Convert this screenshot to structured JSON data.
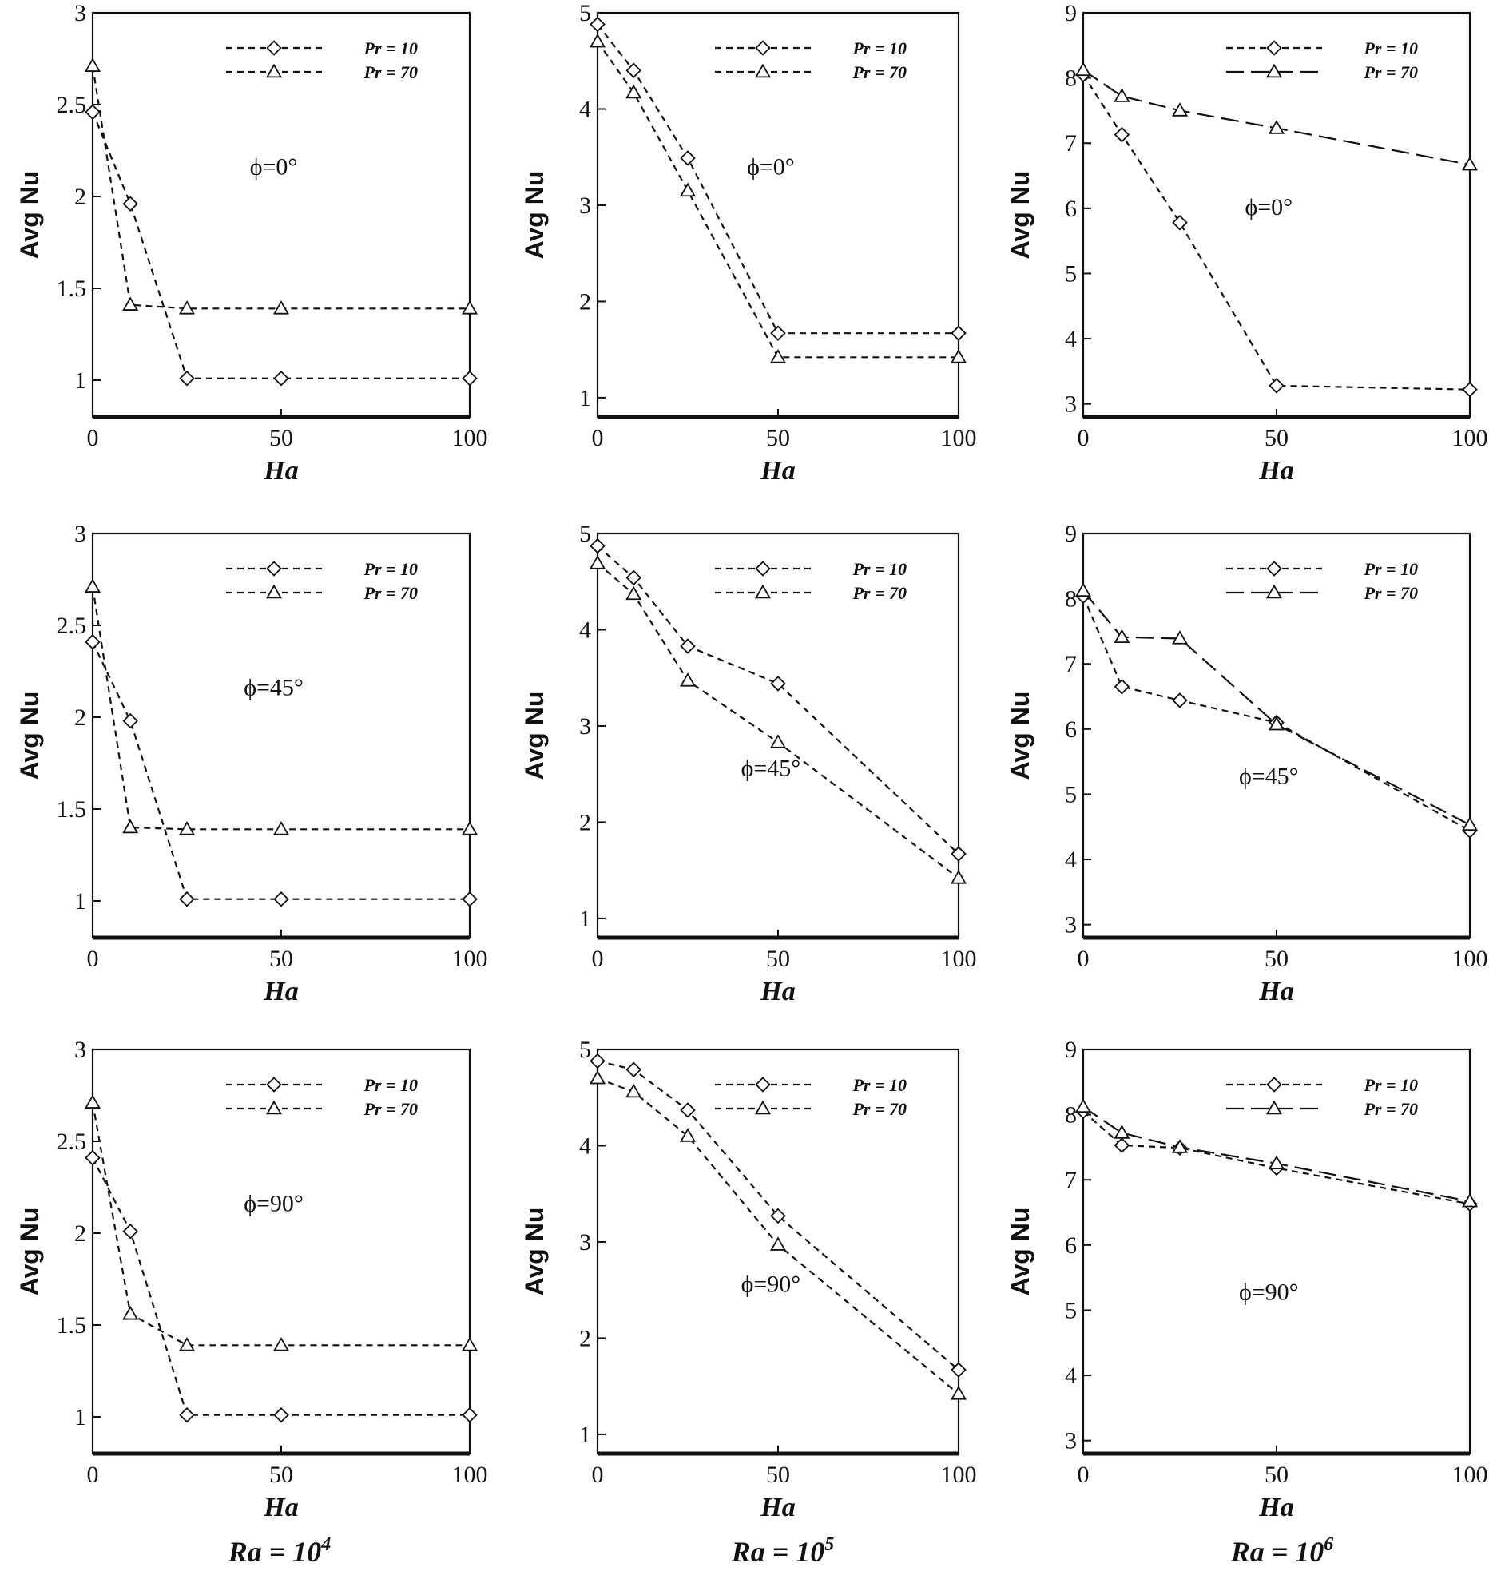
{
  "figure": {
    "ra_labels": [
      "Ra = 10^4",
      "Ra = 10^5",
      "Ra = 10^6"
    ]
  },
  "chart_data": [
    {
      "type": "line",
      "col": 0,
      "row": 0,
      "annotation": "ϕ=0°",
      "xlabel": "Ha",
      "ylabel": "Avg Nu",
      "xlim": [
        0,
        100
      ],
      "ylim": [
        0.8,
        3
      ],
      "xticks": [
        0,
        50,
        100
      ],
      "yticks": [
        1,
        1.5,
        2,
        2.5,
        3
      ],
      "series": [
        {
          "name": "Pr = 10",
          "marker": "diamond",
          "dash": "dot",
          "x": [
            0,
            10,
            25,
            50,
            100
          ],
          "y": [
            2.46,
            1.96,
            1.01,
            1.01,
            1.01
          ]
        },
        {
          "name": "Pr = 70",
          "marker": "triangle",
          "dash": "dot",
          "x": [
            0,
            10,
            25,
            50,
            100
          ],
          "y": [
            2.71,
            1.41,
            1.39,
            1.39,
            1.39
          ]
        }
      ]
    },
    {
      "type": "line",
      "col": 1,
      "row": 0,
      "annotation": "ϕ=0°",
      "xlabel": "Ha",
      "ylabel": "Avg Nu",
      "xlim": [
        0,
        100
      ],
      "ylim": [
        0.8,
        5
      ],
      "xticks": [
        0,
        50,
        100
      ],
      "yticks": [
        1,
        2,
        3,
        4,
        5
      ],
      "series": [
        {
          "name": "Pr = 10",
          "marker": "diamond",
          "dash": "dot",
          "x": [
            0,
            10,
            25,
            50,
            100
          ],
          "y": [
            4.88,
            4.4,
            3.49,
            1.67,
            1.67
          ]
        },
        {
          "name": "Pr = 70",
          "marker": "triangle",
          "dash": "dot",
          "x": [
            0,
            10,
            25,
            50,
            100
          ],
          "y": [
            4.7,
            4.17,
            3.15,
            1.42,
            1.42
          ]
        }
      ]
    },
    {
      "type": "line",
      "col": 2,
      "row": 0,
      "annotation": "ϕ=0°",
      "xlabel": "Ha",
      "ylabel": "Avg Nu",
      "xlim": [
        0,
        100
      ],
      "ylim": [
        2.8,
        9
      ],
      "xticks": [
        0,
        50,
        100
      ],
      "yticks": [
        3,
        4,
        5,
        6,
        7,
        8,
        9
      ],
      "series": [
        {
          "name": "Pr = 10",
          "marker": "diamond",
          "dash": "dot",
          "x": [
            0,
            10,
            25,
            50,
            100
          ],
          "y": [
            8.05,
            7.13,
            5.78,
            3.28,
            3.22
          ]
        },
        {
          "name": "Pr = 70",
          "marker": "triangle",
          "dash": "long",
          "x": [
            0,
            10,
            25,
            50,
            100
          ],
          "y": [
            8.12,
            7.72,
            7.5,
            7.23,
            6.67
          ]
        }
      ]
    },
    {
      "type": "line",
      "col": 0,
      "row": 1,
      "annotation": "ϕ=45°",
      "xlabel": "Ha",
      "ylabel": "Avg Nu",
      "xlim": [
        0,
        100
      ],
      "ylim": [
        0.8,
        3
      ],
      "xticks": [
        0,
        50,
        100
      ],
      "yticks": [
        1,
        1.5,
        2,
        2.5,
        3
      ],
      "series": [
        {
          "name": "Pr = 10",
          "marker": "diamond",
          "dash": "dot",
          "x": [
            0,
            10,
            25,
            50,
            100
          ],
          "y": [
            2.41,
            1.98,
            1.01,
            1.01,
            1.01
          ]
        },
        {
          "name": "Pr = 70",
          "marker": "triangle",
          "dash": "dot",
          "x": [
            0,
            10,
            25,
            50,
            100
          ],
          "y": [
            2.71,
            1.4,
            1.39,
            1.39,
            1.39
          ]
        }
      ]
    },
    {
      "type": "line",
      "col": 1,
      "row": 1,
      "annotation": "ϕ=45°",
      "xlabel": "Ha",
      "ylabel": "Avg Nu",
      "xlim": [
        0,
        100
      ],
      "ylim": [
        0.8,
        5
      ],
      "xticks": [
        0,
        50,
        100
      ],
      "yticks": [
        1,
        2,
        3,
        4,
        5
      ],
      "series": [
        {
          "name": "Pr = 10",
          "marker": "diamond",
          "dash": "dot",
          "x": [
            0,
            10,
            25,
            50,
            100
          ],
          "y": [
            4.87,
            4.54,
            3.83,
            3.44,
            1.67
          ]
        },
        {
          "name": "Pr = 70",
          "marker": "triangle",
          "dash": "dot",
          "x": [
            0,
            10,
            25,
            50,
            100
          ],
          "y": [
            4.69,
            4.37,
            3.47,
            2.83,
            1.42
          ]
        }
      ]
    },
    {
      "type": "line",
      "col": 2,
      "row": 1,
      "annotation": "ϕ=45°",
      "xlabel": "Ha",
      "ylabel": "Avg Nu",
      "xlim": [
        0,
        100
      ],
      "ylim": [
        2.8,
        9
      ],
      "xticks": [
        0,
        50,
        100
      ],
      "yticks": [
        3,
        4,
        5,
        6,
        7,
        8,
        9
      ],
      "series": [
        {
          "name": "Pr = 10",
          "marker": "diamond",
          "dash": "dot",
          "x": [
            0,
            10,
            25,
            50,
            100
          ],
          "y": [
            8.04,
            6.65,
            6.44,
            6.1,
            4.44
          ]
        },
        {
          "name": "Pr = 70",
          "marker": "triangle",
          "dash": "long",
          "x": [
            0,
            10,
            25,
            50,
            100
          ],
          "y": [
            8.12,
            7.41,
            7.39,
            6.07,
            4.53
          ]
        }
      ]
    },
    {
      "type": "line",
      "col": 0,
      "row": 2,
      "annotation": "ϕ=90°",
      "xlabel": "Ha",
      "ylabel": "Avg Nu",
      "xlim": [
        0,
        100
      ],
      "ylim": [
        0.8,
        3
      ],
      "xticks": [
        0,
        50,
        100
      ],
      "yticks": [
        1,
        1.5,
        2,
        2.5,
        3
      ],
      "series": [
        {
          "name": "Pr = 10",
          "marker": "diamond",
          "dash": "dot",
          "x": [
            0,
            10,
            25,
            50,
            100
          ],
          "y": [
            2.41,
            2.01,
            1.01,
            1.01,
            1.01
          ]
        },
        {
          "name": "Pr = 70",
          "marker": "triangle",
          "dash": "dot",
          "x": [
            0,
            10,
            25,
            50,
            100
          ],
          "y": [
            2.71,
            1.56,
            1.39,
            1.39,
            1.39
          ]
        }
      ]
    },
    {
      "type": "line",
      "col": 1,
      "row": 2,
      "annotation": "ϕ=90°",
      "xlabel": "Ha",
      "ylabel": "Avg Nu",
      "xlim": [
        0,
        100
      ],
      "ylim": [
        0.8,
        5
      ],
      "xticks": [
        0,
        50,
        100
      ],
      "yticks": [
        1,
        2,
        3,
        4,
        5
      ],
      "series": [
        {
          "name": "Pr = 10",
          "marker": "diamond",
          "dash": "dot",
          "x": [
            0,
            10,
            25,
            50,
            100
          ],
          "y": [
            4.88,
            4.79,
            4.37,
            3.27,
            1.67
          ]
        },
        {
          "name": "Pr = 70",
          "marker": "triangle",
          "dash": "dot",
          "x": [
            0,
            10,
            25,
            50,
            100
          ],
          "y": [
            4.7,
            4.56,
            4.1,
            2.97,
            1.42
          ]
        }
      ]
    },
    {
      "type": "line",
      "col": 2,
      "row": 2,
      "annotation": "ϕ=90°",
      "xlabel": "Ha",
      "ylabel": "Avg Nu",
      "xlim": [
        0,
        100
      ],
      "ylim": [
        2.8,
        9
      ],
      "xticks": [
        0,
        50,
        100
      ],
      "yticks": [
        3,
        4,
        5,
        6,
        7,
        8,
        9
      ],
      "series": [
        {
          "name": "Pr = 10",
          "marker": "diamond",
          "dash": "dot",
          "x": [
            0,
            10,
            25,
            50,
            100
          ],
          "y": [
            8.05,
            7.53,
            7.49,
            7.18,
            6.63
          ]
        },
        {
          "name": "Pr = 70",
          "marker": "triangle",
          "dash": "long",
          "x": [
            0,
            10,
            25,
            50,
            100
          ],
          "y": [
            8.12,
            7.72,
            7.5,
            7.25,
            6.67
          ]
        }
      ]
    }
  ]
}
